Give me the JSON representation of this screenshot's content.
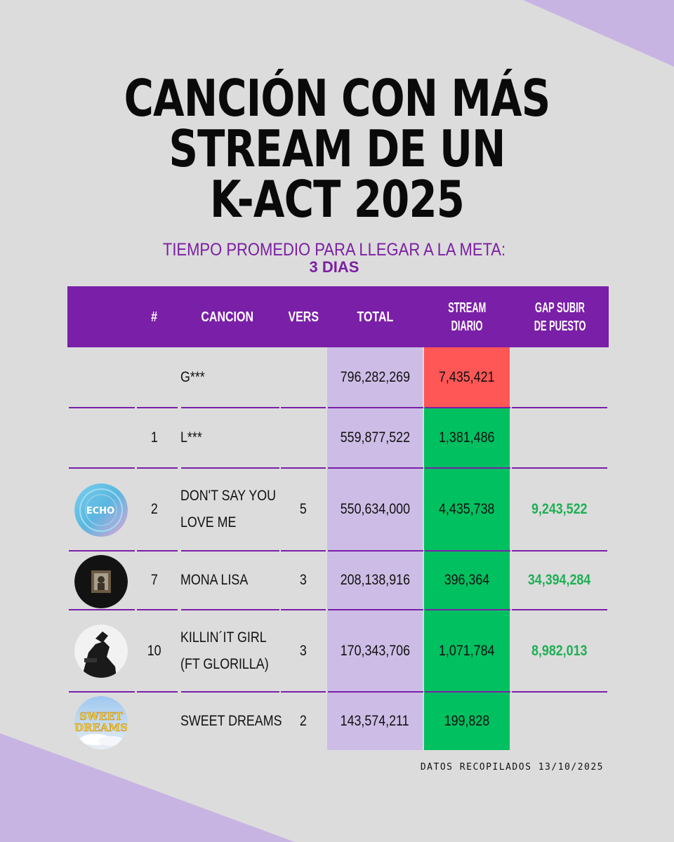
{
  "title_lines": [
    "CANCIÓN CON MÁS",
    "STREAM DE UN",
    "K-ACT 2025"
  ],
  "subtitle": {
    "line1": "TIEMPO PROMEDIO PARA LLEGAR A LA META:",
    "line2": "3 DIAS"
  },
  "table": {
    "headers": {
      "rank": "#",
      "song": "CANCION",
      "vers": "VERS",
      "total": "TOTAL",
      "stream_l1": "STREAM",
      "stream_l2": "DIARIO",
      "gap_l1": "GAP SUBIR",
      "gap_l2": "DE PUESTO"
    },
    "rows": [
      {
        "rank": "",
        "song_l1": "G***",
        "song_l2": "",
        "vers": "",
        "total": "796,282,269",
        "stream": "7,435,421",
        "gap": ""
      },
      {
        "rank": "1",
        "song_l1": "L***",
        "song_l2": "",
        "vers": "",
        "total": "559,877,522",
        "stream": "1,381,486",
        "gap": ""
      },
      {
        "rank": "2",
        "song_l1": "DON'T SAY YOU",
        "song_l2": "LOVE ME",
        "vers": "5",
        "total": "550,634,000",
        "stream": "4,435,738",
        "gap": "9,243,522"
      },
      {
        "rank": "7",
        "song_l1": "MONA LISA",
        "song_l2": "",
        "vers": "3",
        "total": "208,138,916",
        "stream": "396,364",
        "gap": "34,394,284"
      },
      {
        "rank": "10",
        "song_l1": "KILLIN´IT GIRL",
        "song_l2": "(FT GLORILLA)",
        "vers": "3",
        "total": "170,343,706",
        "stream": "1,071,784",
        "gap": "8,982,013"
      },
      {
        "rank": "",
        "song_l1": "SWEET DREAMS",
        "song_l2": "",
        "vers": "2",
        "total": "143,574,211",
        "stream": "199,828",
        "gap": ""
      }
    ]
  },
  "album_art": {
    "echo_text": "ECHO",
    "sweet_dreams_text_l1": "SWEET",
    "sweet_dreams_text_l2": "DREAMS"
  },
  "colors": {
    "purple": "#7a1fa8",
    "lavender": "#cdbde6",
    "green": "#00c060",
    "red": "#ff5656",
    "gap_green": "#1faf55"
  },
  "footer": "DATOS RECOPILADOS 13/10/2025"
}
